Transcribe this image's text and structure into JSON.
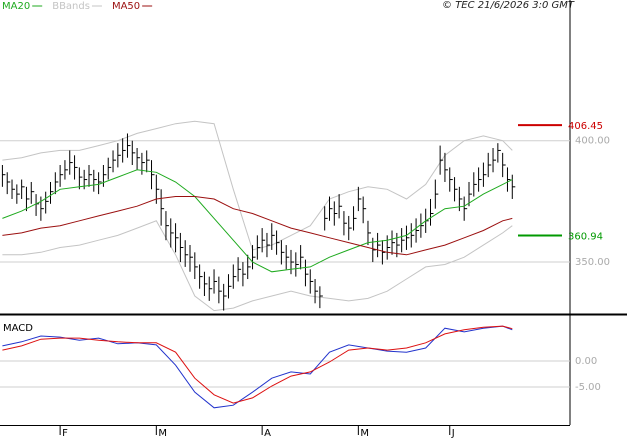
{
  "chart_data": {
    "type": "ohlc",
    "copyright": "© TEC 21/6/2026 3:0 GMT",
    "xlim": [
      -0.5,
      118
    ],
    "xticks": [
      {
        "value": 12,
        "label": "F"
      },
      {
        "value": 32,
        "label": "M"
      },
      {
        "value": 54,
        "label": "A"
      },
      {
        "value": 74,
        "label": "M"
      },
      {
        "value": 93,
        "label": "J"
      }
    ],
    "ylim": [
      329,
      458
    ],
    "yticks": [
      {
        "value": 400,
        "label": "400.00"
      },
      {
        "value": 350,
        "label": "350.00"
      }
    ],
    "color": "#000000",
    "high": [
      390,
      387,
      384,
      382,
      384,
      381,
      383,
      378,
      377,
      379,
      383,
      387,
      390,
      392,
      396,
      394,
      389,
      388,
      390,
      388,
      387,
      390,
      393,
      396,
      399,
      401,
      403,
      400,
      397,
      395,
      396,
      392,
      386,
      380,
      371,
      368,
      366,
      362,
      359,
      357,
      354,
      349,
      346,
      344,
      347,
      344,
      341,
      345,
      349,
      352,
      350,
      353,
      357,
      361,
      364,
      362,
      366,
      363,
      359,
      357,
      355,
      354,
      357,
      351,
      347,
      343,
      340,
      373,
      377,
      375,
      378,
      371,
      369,
      373,
      381,
      377,
      367,
      360,
      362,
      359,
      361,
      363,
      362,
      364,
      365,
      366,
      368,
      370,
      372,
      376,
      384,
      398,
      395,
      389,
      385,
      381,
      377,
      383,
      387,
      389,
      391,
      395,
      397,
      399,
      395,
      389,
      386
    ],
    "low": [
      381,
      378,
      376,
      374,
      376,
      371,
      374,
      369,
      367,
      370,
      374,
      378,
      381,
      384,
      386,
      384,
      380,
      380,
      381,
      379,
      378,
      381,
      384,
      387,
      389,
      391,
      393,
      390,
      388,
      386,
      387,
      380,
      374,
      365,
      359,
      356,
      354,
      350,
      348,
      346,
      343,
      339,
      336,
      334,
      337,
      333,
      330,
      335,
      339,
      342,
      340,
      343,
      347,
      351,
      354,
      352,
      355,
      353,
      349,
      347,
      345,
      344,
      347,
      340,
      337,
      333,
      331,
      363,
      367,
      365,
      368,
      361,
      359,
      363,
      371,
      366,
      357,
      350,
      352,
      349,
      351,
      353,
      352,
      354,
      355,
      356,
      358,
      360,
      362,
      365,
      372,
      386,
      383,
      379,
      375,
      371,
      367,
      373,
      377,
      379,
      381,
      385,
      387,
      391,
      385,
      379,
      376
    ],
    "close": [
      386,
      383,
      380,
      378,
      381,
      376,
      379,
      374,
      372,
      375,
      379,
      383,
      386,
      388,
      391,
      389,
      385,
      384,
      386,
      384,
      383,
      386,
      389,
      392,
      394,
      396,
      398,
      395,
      393,
      391,
      392,
      386,
      380,
      372,
      365,
      362,
      360,
      356,
      353,
      352,
      348,
      344,
      341,
      339,
      342,
      338,
      336,
      340,
      344,
      347,
      345,
      348,
      352,
      356,
      359,
      357,
      361,
      358,
      354,
      352,
      350,
      349,
      352,
      345,
      342,
      338,
      336,
      368,
      372,
      370,
      373,
      366,
      364,
      368,
      376,
      372,
      362,
      355,
      357,
      354,
      356,
      358,
      357,
      359,
      360,
      361,
      363,
      365,
      367,
      370,
      378,
      392,
      388,
      384,
      380,
      376,
      372,
      378,
      382,
      384,
      386,
      390,
      392,
      396,
      390,
      384,
      381
    ],
    "lines_x": [
      0,
      4,
      8,
      12,
      16,
      20,
      24,
      28,
      32,
      36,
      40,
      44,
      48,
      52,
      56,
      60,
      64,
      68,
      72,
      76,
      80,
      84,
      88,
      92,
      96,
      100,
      104,
      106
    ],
    "series": [
      {
        "name": "MA20",
        "color": "#1faa1f",
        "values": [
          368,
          371,
          375,
          380,
          381,
          382,
          385,
          388,
          387,
          383,
          377,
          368,
          359,
          350,
          346,
          347,
          348,
          352,
          355,
          358,
          359,
          361,
          367,
          372,
          373,
          378,
          382,
          384
        ]
      },
      {
        "name": "BBands",
        "color": "#c4c4c4",
        "upper": [
          392,
          393,
          395,
          396,
          396,
          398,
          400,
          403,
          405,
          407,
          408,
          407,
          380,
          355,
          357,
          361,
          365,
          376,
          379,
          381,
          380,
          376,
          382,
          394,
          400,
          402,
          400,
          396
        ],
        "lower": [
          353,
          353,
          354,
          356,
          357,
          359,
          361,
          364,
          367,
          353,
          336,
          330,
          331,
          334,
          336,
          338,
          336,
          335,
          334,
          335,
          338,
          343,
          348,
          349,
          352,
          357,
          362,
          365
        ]
      },
      {
        "name": "MA50",
        "color": "#9b1010",
        "values": [
          361,
          362,
          364,
          365,
          367,
          369,
          371,
          373,
          376,
          377,
          377,
          376,
          372,
          370,
          367,
          364,
          362,
          360,
          358,
          356,
          354,
          353,
          355,
          357,
          360,
          363,
          367,
          368
        ]
      }
    ],
    "levels": [
      {
        "value": 406.45,
        "color": "#cc0000"
      },
      {
        "value": 360.94,
        "color": "#009900"
      }
    ],
    "macd": {
      "title": "MACD",
      "ylim": [
        -12.3,
        8.65
      ],
      "yticks": [
        {
          "value": 0,
          "label": "0.00"
        },
        {
          "value": -5,
          "label": "-5.00"
        }
      ],
      "series": [
        {
          "color": "#2233cc",
          "values": [
            2.9,
            3.7,
            4.8,
            4.6,
            4.0,
            4.4,
            3.3,
            3.5,
            3.1,
            -0.8,
            -6.0,
            -9.0,
            -8.5,
            -6.0,
            -3.3,
            -2.1,
            -2.5,
            1.7,
            3.1,
            2.5,
            1.9,
            1.7,
            2.5,
            6.3,
            5.6,
            6.3,
            6.7,
            6.0
          ]
        },
        {
          "color": "#dd1111",
          "values": [
            2.1,
            2.9,
            4.2,
            4.4,
            4.4,
            4.0,
            3.7,
            3.5,
            3.5,
            1.7,
            -3.3,
            -6.5,
            -8.1,
            -7.1,
            -4.8,
            -2.9,
            -2.1,
            -0.2,
            2.1,
            2.5,
            2.1,
            2.5,
            3.5,
            5.2,
            6.0,
            6.5,
            6.7,
            6.2
          ]
        }
      ]
    }
  }
}
